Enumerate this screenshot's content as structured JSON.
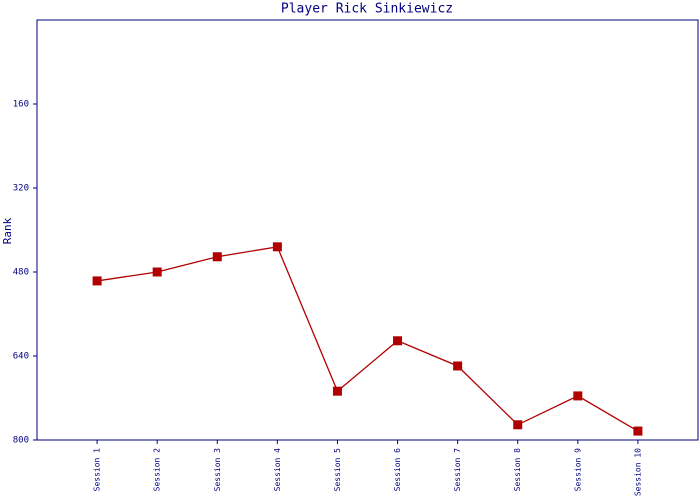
{
  "chart_data": {
    "type": "line",
    "title": "Player Rick Sinkiewicz",
    "y_label": "Rank",
    "categories": [
      "Session 1",
      "Session 2",
      "Session 3",
      "Session 4",
      "Session 5",
      "Session 6",
      "Session 7",
      "Session 8",
      "Session 9",
      "Session 10"
    ],
    "series": [
      {
        "name": "Rick Sinkiewicz",
        "color": "#b00000",
        "values": [
          497,
          480,
          451,
          432,
          707,
          611,
          659,
          771,
          716,
          783
        ]
      }
    ],
    "ylim": [
      800,
      0
    ],
    "yticks": [
      160,
      320,
      480,
      640,
      800
    ]
  }
}
